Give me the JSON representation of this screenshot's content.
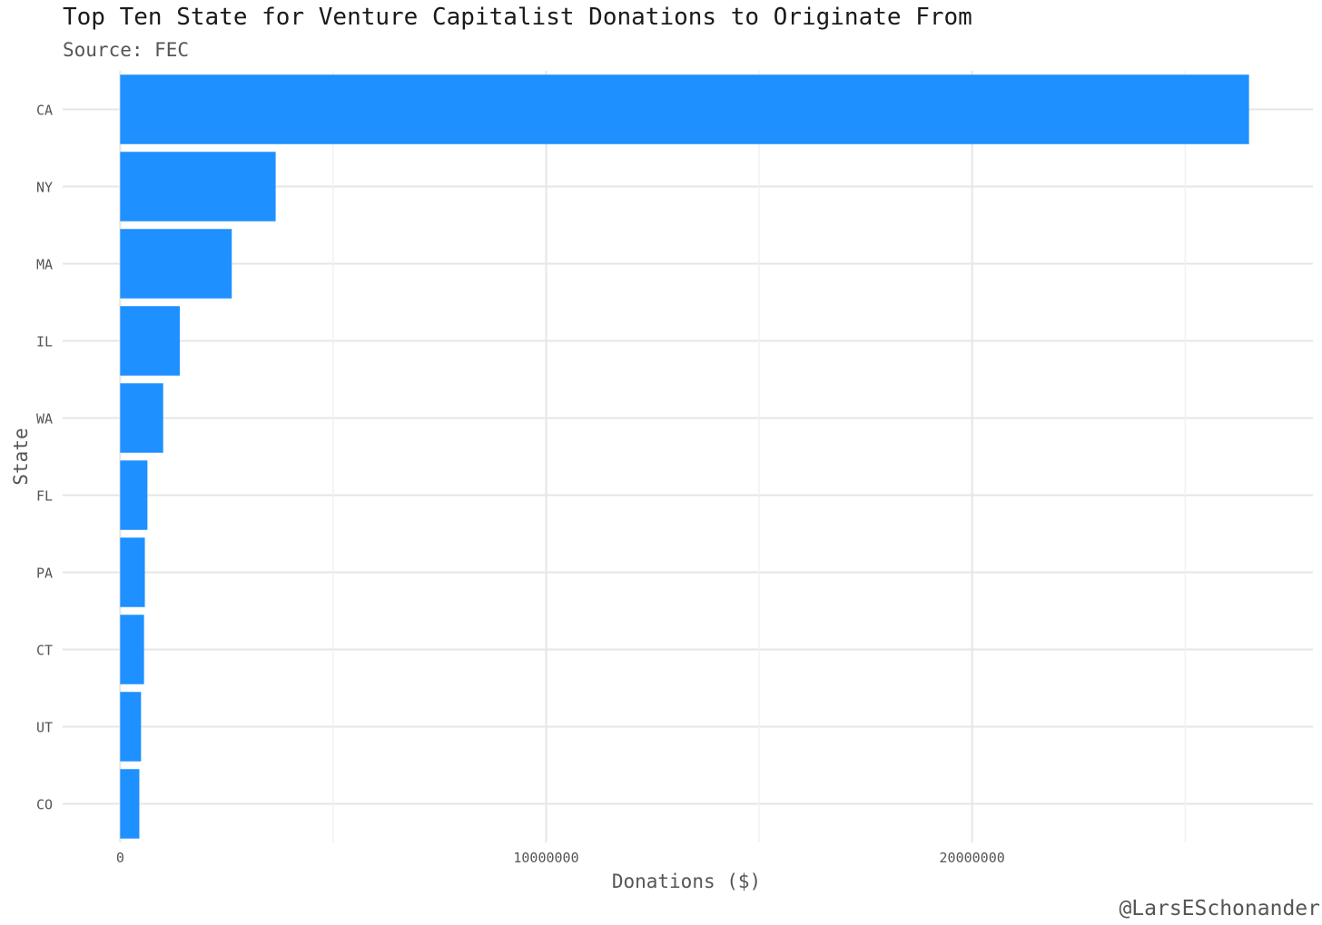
{
  "chart_data": {
    "type": "bar",
    "orientation": "horizontal",
    "title": "Top Ten State for Venture Capitalist Donations to Originate From",
    "subtitle": "Source: FEC",
    "caption": "@LarsESchonander",
    "xlabel": "Donations ($)",
    "ylabel": "State",
    "categories": [
      "CA",
      "NY",
      "MA",
      "IL",
      "WA",
      "FL",
      "PA",
      "CT",
      "UT",
      "CO"
    ],
    "values": [
      26500000,
      3650000,
      2620000,
      1400000,
      1010000,
      640000,
      580000,
      560000,
      490000,
      450000
    ],
    "xlim": [
      -1350000,
      28000000
    ],
    "xticks": [
      0,
      10000000,
      20000000
    ],
    "xtick_labels": [
      "0",
      "10000000",
      "20000000"
    ],
    "bar_color": "#1E90FF",
    "grid": true,
    "legend": "none"
  }
}
